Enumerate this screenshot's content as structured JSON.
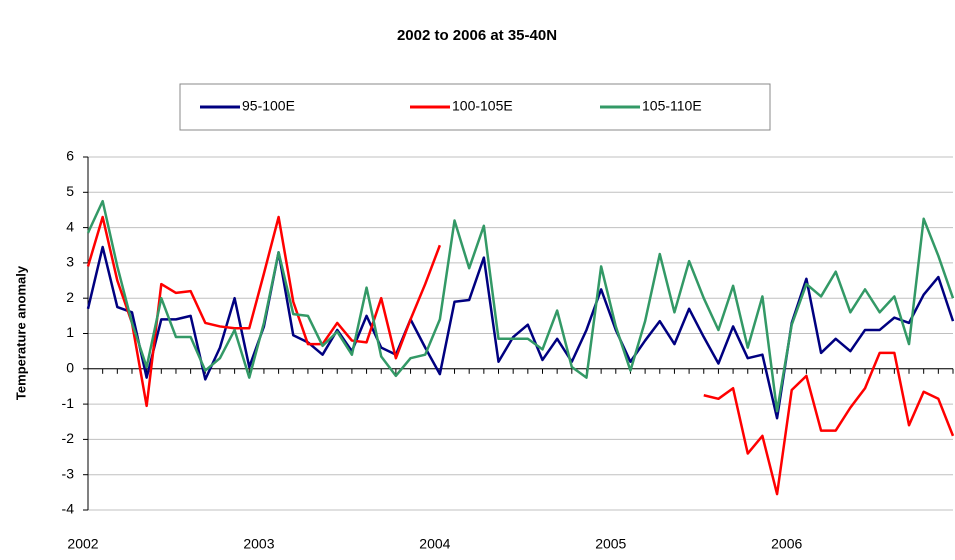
{
  "chart_data": {
    "type": "line",
    "title": "2002 to 2006 at 35-40N",
    "y_label": "Temperature anomaly",
    "categories": [
      "2002",
      null,
      null,
      null,
      null,
      null,
      null,
      null,
      null,
      null,
      null,
      null,
      "2003",
      null,
      null,
      null,
      null,
      null,
      null,
      null,
      null,
      null,
      null,
      null,
      "2004",
      null,
      null,
      null,
      null,
      null,
      null,
      null,
      null,
      null,
      null,
      null,
      "2005",
      null,
      null,
      null,
      null,
      null,
      null,
      null,
      null,
      null,
      null,
      null,
      "2006",
      null,
      null,
      null,
      null,
      null,
      null,
      null,
      null,
      null,
      null,
      null
    ],
    "series": [
      {
        "name": "95-100E",
        "color": "#000080",
        "values": [
          1.7,
          3.45,
          1.75,
          1.6,
          -0.25,
          1.4,
          1.4,
          1.5,
          -0.3,
          0.6,
          2.0,
          0.05,
          1.2,
          3.3,
          0.95,
          0.75,
          0.4,
          1.1,
          0.5,
          1.5,
          0.6,
          0.4,
          1.4,
          0.6,
          -0.15,
          1.9,
          1.95,
          3.15,
          0.2,
          0.9,
          1.25,
          0.25,
          0.85,
          0.2,
          1.1,
          2.25,
          1.1,
          0.2,
          0.8,
          1.35,
          0.7,
          1.7,
          0.9,
          0.15,
          1.2,
          0.3,
          0.4,
          -1.4,
          1.3,
          2.55,
          0.45,
          0.85,
          0.5,
          1.1,
          1.1,
          1.45,
          1.3,
          2.1,
          2.6,
          1.35
        ]
      },
      {
        "name": "100-105E",
        "color": "#ff0000",
        "values": [
          2.9,
          4.3,
          2.5,
          1.3,
          -1.05,
          2.4,
          2.15,
          2.2,
          1.3,
          1.2,
          1.15,
          1.15,
          2.7,
          4.3,
          1.9,
          0.7,
          0.7,
          1.3,
          0.8,
          0.75,
          2.0,
          0.3,
          1.4,
          2.4,
          3.5,
          null,
          null,
          null,
          null,
          null,
          null,
          null,
          null,
          null,
          null,
          null,
          null,
          null,
          null,
          null,
          null,
          null,
          -0.75,
          -0.85,
          -0.55,
          -2.4,
          -1.9,
          -3.55,
          -0.6,
          -0.2,
          -1.75,
          -1.75,
          -1.1,
          -0.55,
          0.45,
          0.45,
          -1.6,
          -0.65,
          -0.85,
          -1.9
        ]
      },
      {
        "name": "105-110E",
        "color": "#339966",
        "values": [
          3.85,
          4.75,
          2.9,
          1.3,
          0.05,
          2.0,
          0.9,
          0.9,
          -0.05,
          0.3,
          1.1,
          -0.25,
          1.3,
          3.3,
          1.55,
          1.5,
          0.65,
          1.05,
          0.4,
          2.3,
          0.35,
          -0.2,
          0.3,
          0.4,
          1.4,
          4.2,
          2.85,
          4.05,
          0.85,
          0.85,
          0.85,
          0.55,
          1.65,
          0.05,
          -0.25,
          2.9,
          1.2,
          -0.05,
          1.35,
          3.25,
          1.6,
          3.05,
          2.0,
          1.1,
          2.35,
          0.6,
          2.05,
          -1.2,
          1.25,
          2.4,
          2.05,
          2.75,
          1.6,
          2.25,
          1.6,
          2.05,
          0.7,
          4.25,
          3.2,
          2.0
        ]
      }
    ],
    "ylim": [
      -4,
      6
    ],
    "yticks": [
      -4,
      -3,
      -2,
      -1,
      0,
      1,
      2,
      3,
      4,
      5,
      6
    ],
    "grid": true,
    "legend": "top"
  }
}
